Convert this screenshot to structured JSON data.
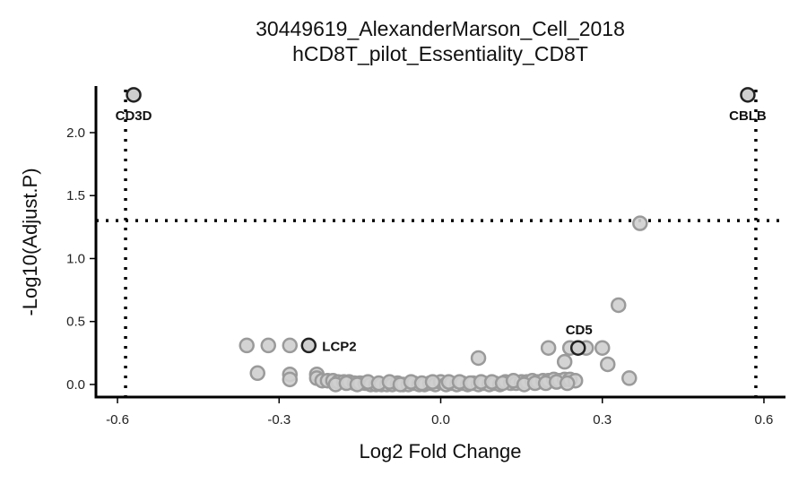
{
  "chart_data": {
    "type": "scatter",
    "title": "30449619_AlexanderMarson_Cell_2018",
    "subtitle": "hCD8T_pilot_Essentiality_CD8T",
    "xlabel": "Log2 Fold Change",
    "ylabel": "-Log10(Adjust.P)",
    "xlim": [
      -0.64,
      0.64
    ],
    "ylim": [
      -0.1,
      2.37
    ],
    "x_ticks": [
      -0.6,
      -0.3,
      0.0,
      0.3,
      0.6
    ],
    "x_tick_labels": [
      "-0.6",
      "-0.3",
      "0.0",
      "0.3",
      "0.6"
    ],
    "y_ticks": [
      0.0,
      0.5,
      1.0,
      1.5,
      2.0
    ],
    "y_tick_labels": [
      "0.0",
      "0.5",
      "1.0",
      "1.5",
      "2.0"
    ],
    "threshold_lines": {
      "x": [
        -0.585,
        0.585
      ],
      "y": 1.301
    },
    "grid": false,
    "colors": {
      "background_point_fill": "#cfcfcf",
      "background_point_stroke": "#9a9a9a",
      "highlight_stroke": "#222222",
      "line": "#000000"
    },
    "points": [
      {
        "x": 0.37,
        "y": 1.28
      },
      {
        "x": 0.33,
        "y": 0.63
      },
      {
        "x": -0.36,
        "y": 0.31
      },
      {
        "x": -0.32,
        "y": 0.31
      },
      {
        "x": -0.28,
        "y": 0.31
      },
      {
        "x": 0.2,
        "y": 0.29
      },
      {
        "x": 0.24,
        "y": 0.29
      },
      {
        "x": 0.27,
        "y": 0.29
      },
      {
        "x": 0.3,
        "y": 0.29
      },
      {
        "x": 0.07,
        "y": 0.21
      },
      {
        "x": 0.23,
        "y": 0.18
      },
      {
        "x": 0.31,
        "y": 0.16
      },
      {
        "x": -0.34,
        "y": 0.09
      },
      {
        "x": -0.28,
        "y": 0.08
      },
      {
        "x": -0.23,
        "y": 0.08
      },
      {
        "x": 0.35,
        "y": 0.05
      },
      {
        "x": -0.28,
        "y": 0.04
      },
      {
        "x": -0.23,
        "y": 0.05
      },
      {
        "x": -0.22,
        "y": 0.03
      },
      {
        "x": -0.21,
        "y": 0.03
      },
      {
        "x": -0.2,
        "y": 0.03
      },
      {
        "x": -0.19,
        "y": 0.02
      },
      {
        "x": -0.18,
        "y": 0.02
      },
      {
        "x": -0.17,
        "y": 0.02
      },
      {
        "x": -0.16,
        "y": 0.01
      },
      {
        "x": -0.15,
        "y": 0.01
      },
      {
        "x": -0.14,
        "y": 0.01
      },
      {
        "x": -0.13,
        "y": 0.0
      },
      {
        "x": -0.12,
        "y": 0.0
      },
      {
        "x": -0.11,
        "y": 0.0
      },
      {
        "x": -0.1,
        "y": 0.0
      },
      {
        "x": -0.09,
        "y": 0.0
      },
      {
        "x": -0.08,
        "y": 0.01
      },
      {
        "x": -0.07,
        "y": 0.0
      },
      {
        "x": -0.06,
        "y": 0.0
      },
      {
        "x": -0.05,
        "y": 0.01
      },
      {
        "x": -0.04,
        "y": 0.0
      },
      {
        "x": -0.03,
        "y": 0.0
      },
      {
        "x": -0.02,
        "y": 0.01
      },
      {
        "x": -0.01,
        "y": 0.0
      },
      {
        "x": 0.0,
        "y": 0.02
      },
      {
        "x": 0.01,
        "y": 0.0
      },
      {
        "x": 0.02,
        "y": 0.01
      },
      {
        "x": 0.03,
        "y": 0.0
      },
      {
        "x": 0.04,
        "y": 0.01
      },
      {
        "x": 0.05,
        "y": 0.0
      },
      {
        "x": 0.06,
        "y": 0.01
      },
      {
        "x": 0.07,
        "y": 0.0
      },
      {
        "x": 0.08,
        "y": 0.01
      },
      {
        "x": 0.09,
        "y": 0.0
      },
      {
        "x": 0.1,
        "y": 0.01
      },
      {
        "x": 0.11,
        "y": 0.0
      },
      {
        "x": 0.12,
        "y": 0.02
      },
      {
        "x": 0.13,
        "y": 0.01
      },
      {
        "x": 0.14,
        "y": 0.01
      },
      {
        "x": 0.15,
        "y": 0.02
      },
      {
        "x": 0.16,
        "y": 0.02
      },
      {
        "x": 0.17,
        "y": 0.03
      },
      {
        "x": 0.18,
        "y": 0.02
      },
      {
        "x": 0.19,
        "y": 0.03
      },
      {
        "x": 0.2,
        "y": 0.03
      },
      {
        "x": 0.21,
        "y": 0.04
      },
      {
        "x": 0.22,
        "y": 0.03
      },
      {
        "x": 0.23,
        "y": 0.04
      },
      {
        "x": 0.24,
        "y": 0.04
      },
      {
        "x": 0.25,
        "y": 0.03
      },
      {
        "x": -0.195,
        "y": 0.0
      },
      {
        "x": -0.175,
        "y": 0.01
      },
      {
        "x": -0.155,
        "y": 0.0
      },
      {
        "x": -0.135,
        "y": 0.02
      },
      {
        "x": -0.115,
        "y": 0.01
      },
      {
        "x": -0.095,
        "y": 0.02
      },
      {
        "x": -0.075,
        "y": 0.0
      },
      {
        "x": -0.055,
        "y": 0.02
      },
      {
        "x": -0.035,
        "y": 0.01
      },
      {
        "x": -0.015,
        "y": 0.02
      },
      {
        "x": 0.015,
        "y": 0.02
      },
      {
        "x": 0.035,
        "y": 0.02
      },
      {
        "x": 0.055,
        "y": 0.01
      },
      {
        "x": 0.075,
        "y": 0.02
      },
      {
        "x": 0.095,
        "y": 0.02
      },
      {
        "x": 0.115,
        "y": 0.01
      },
      {
        "x": 0.135,
        "y": 0.03
      },
      {
        "x": 0.155,
        "y": 0.0
      },
      {
        "x": 0.175,
        "y": 0.01
      },
      {
        "x": 0.195,
        "y": 0.01
      },
      {
        "x": 0.215,
        "y": 0.02
      },
      {
        "x": 0.235,
        "y": 0.01
      }
    ],
    "highlighted": [
      {
        "label": "CD3D",
        "x": -0.57,
        "y": 2.3
      },
      {
        "label": "CBLB",
        "x": 0.57,
        "y": 2.3
      },
      {
        "label": "LCP2",
        "x": -0.245,
        "y": 0.31
      },
      {
        "label": "CD5",
        "x": 0.255,
        "y": 0.29
      }
    ]
  }
}
